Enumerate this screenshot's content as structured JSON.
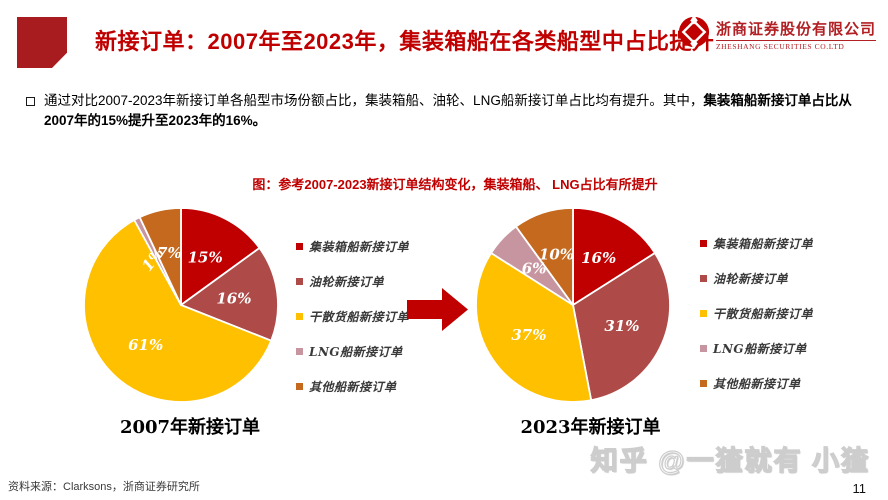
{
  "header": {
    "title": "新接订单：2007年至2023年，集装箱船在各类船型中占比提升",
    "logo": {
      "cn": "浙商证券股份有限公司",
      "en": "ZHESHANG SECURITIES CO.LTD"
    }
  },
  "bullet": {
    "text_normal": "通过对比2007-2023年新接订单各船型市场份额占比，集装箱船、油轮、LNG船新接订单占比均有提升。其中，",
    "text_bold": "集装箱船新接订单占比从2007年的15%提升至2023年的16%。"
  },
  "figure": {
    "title": "图：参考2007-2023新接订单结构变化，集装箱船、 LNG占比有所提升"
  },
  "chart_data": [
    {
      "type": "pie",
      "title": "2007年新接订单",
      "labels": [
        "集装箱船新接订单",
        "油轮新接订单",
        "干散货船新接订单",
        "LNG船新接订单",
        "其他船新接订单"
      ],
      "values": [
        15,
        16,
        61,
        1,
        7
      ],
      "colors": [
        "#c00000",
        "#ae4a47",
        "#ffc000",
        "#c795a0",
        "#c4691e"
      ],
      "legend_position": "right",
      "slice_label_color": "#ffffff",
      "start_angle_deg": -90,
      "direction": "clockwise"
    },
    {
      "type": "pie",
      "title": "2023年新接订单",
      "labels": [
        "集装箱船新接订单",
        "油轮新接订单",
        "干散货船新接订单",
        "LNG船新接订单",
        "其他船新接订单"
      ],
      "values": [
        16,
        31,
        37,
        6,
        10
      ],
      "colors": [
        "#c00000",
        "#ae4a47",
        "#ffc000",
        "#c795a0",
        "#c4691e"
      ],
      "legend_position": "right",
      "slice_label_color": "#ffffff",
      "start_angle_deg": -90,
      "direction": "clockwise"
    }
  ],
  "arrow": {
    "color": "#c00000"
  },
  "footer": {
    "source": "资料来源：Clarksons，浙商证券研究所",
    "page": "11"
  },
  "watermark": {
    "text": "知乎 @一猹就有 小猹"
  },
  "colors": {
    "brand_red": "#c00000",
    "accent_block": "#a81c1f",
    "title_red": "#c00000"
  }
}
